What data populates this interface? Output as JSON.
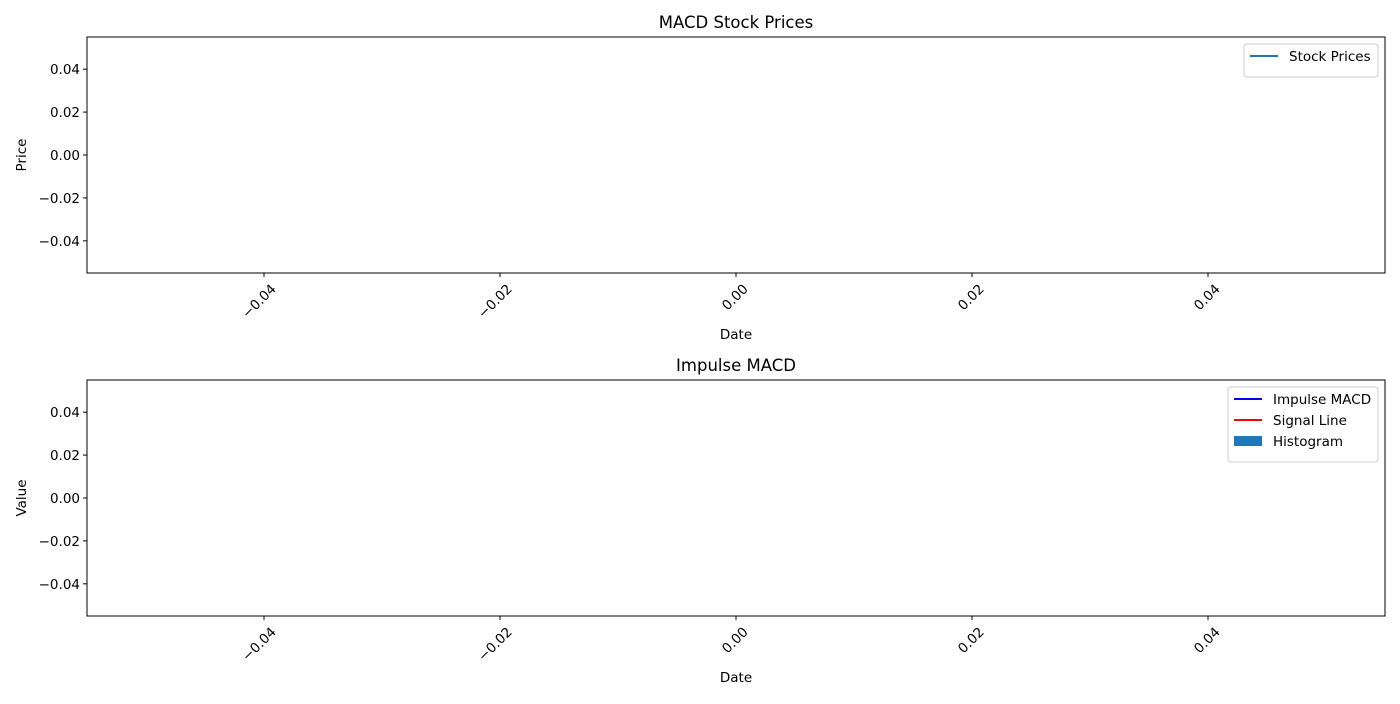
{
  "chart_data": [
    {
      "type": "line",
      "title": "MACD Stock Prices",
      "xlabel": "Date",
      "ylabel": "Price",
      "xlim": [
        -0.055,
        0.055
      ],
      "ylim": [
        -0.055,
        0.055
      ],
      "x_ticks": [
        -0.04,
        -0.02,
        0.0,
        0.02,
        0.04
      ],
      "x_tick_labels": [
        "−0.04",
        "−0.02",
        "0.00",
        "0.02",
        "0.04"
      ],
      "y_ticks": [
        0.04,
        0.02,
        0.0,
        -0.02,
        -0.04
      ],
      "y_tick_labels": [
        "0.04",
        "0.02",
        "0.00",
        "−0.02",
        "−0.04"
      ],
      "x_tick_rotation": 45,
      "grid": false,
      "legend_position": "top-right",
      "series": [
        {
          "name": "Stock Prices",
          "kind": "line",
          "color": "#1f77b4",
          "x": [],
          "values": []
        }
      ]
    },
    {
      "type": "line",
      "title": "Impulse MACD",
      "xlabel": "Date",
      "ylabel": "Value",
      "xlim": [
        -0.055,
        0.055
      ],
      "ylim": [
        -0.055,
        0.055
      ],
      "x_ticks": [
        -0.04,
        -0.02,
        0.0,
        0.02,
        0.04
      ],
      "x_tick_labels": [
        "−0.04",
        "−0.02",
        "0.00",
        "0.02",
        "0.04"
      ],
      "y_ticks": [
        0.04,
        0.02,
        0.0,
        -0.02,
        -0.04
      ],
      "y_tick_labels": [
        "0.04",
        "0.02",
        "0.00",
        "−0.02",
        "−0.04"
      ],
      "x_tick_rotation": 45,
      "grid": false,
      "legend_position": "top-right",
      "series": [
        {
          "name": "Impulse MACD",
          "kind": "line",
          "color": "#0000ff",
          "x": [],
          "values": []
        },
        {
          "name": "Signal Line",
          "kind": "line",
          "color": "#ff0000",
          "x": [],
          "values": []
        },
        {
          "name": "Histogram",
          "kind": "bar",
          "color": "#1f77b4",
          "x": [],
          "values": []
        }
      ]
    }
  ]
}
